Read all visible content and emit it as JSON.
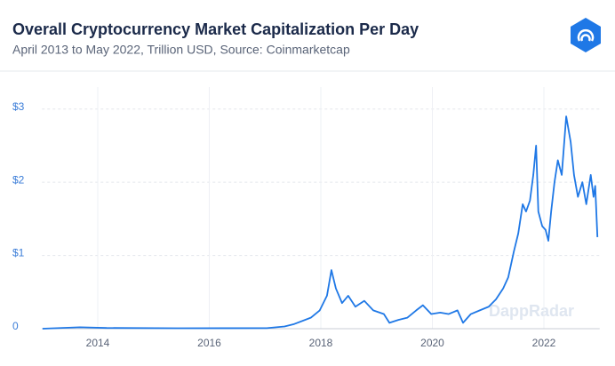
{
  "chart_data": {
    "type": "line",
    "title": "Overall Cryptocurrency Market Capitalization Per Day",
    "subtitle": "April 2013 to May 2022, Trillion USD, Source: Coinmarketcap",
    "watermark": "DappRadar",
    "x": [
      2013.01,
      2013.68,
      2014.16,
      2015.43,
      2017.03,
      2017.35,
      2017.51,
      2017.82,
      2017.98,
      2018.11,
      2018.19,
      2018.27,
      2018.38,
      2018.49,
      2018.62,
      2018.78,
      2018.94,
      2019.13,
      2019.23,
      2019.39,
      2019.55,
      2019.71,
      2019.83,
      2019.98,
      2020.14,
      2020.29,
      2020.45,
      2020.55,
      2020.69,
      2020.85,
      2021.01,
      2021.14,
      2021.27,
      2021.36,
      2021.46,
      2021.54,
      2021.62,
      2021.68,
      2021.75,
      2021.81,
      2021.86,
      2021.9,
      2021.97,
      2022.03,
      2022.08,
      2022.13,
      2022.19,
      2022.25,
      2022.32,
      2022.4,
      2022.48,
      2022.54,
      2022.61,
      2022.69,
      2022.76,
      2022.84,
      2022.89,
      2022.92,
      2022.96
    ],
    "series": [
      {
        "color": "#1f78e6",
        "values": [
          0,
          0.02,
          0.01,
          0.006,
          0.008,
          0.03,
          0.06,
          0.15,
          0.25,
          0.45,
          0.8,
          0.55,
          0.35,
          0.45,
          0.3,
          0.38,
          0.25,
          0.2,
          0.08,
          0.12,
          0.15,
          0.25,
          0.32,
          0.2,
          0.22,
          0.2,
          0.25,
          0.08,
          0.2,
          0.25,
          0.3,
          0.4,
          0.55,
          0.7,
          1.05,
          1.3,
          1.7,
          1.6,
          1.75,
          2.1,
          2.5,
          1.6,
          1.4,
          1.35,
          1.2,
          1.6,
          2.0,
          2.3,
          2.1,
          2.9,
          2.55,
          2.1,
          1.8,
          2.0,
          1.7,
          2.1,
          1.8,
          1.95,
          1.25
        ]
      }
    ],
    "xlim": [
      2013.0,
      2023.0
    ],
    "xticks": [
      2014,
      2016,
      2018,
      2020,
      2022
    ],
    "ylim": [
      0,
      3.3
    ],
    "yticks": [
      0,
      {
        "value": 1,
        "label": "$1"
      },
      {
        "value": 2,
        "label": "$2"
      },
      {
        "value": 3,
        "label": "$3"
      }
    ],
    "grid": true
  }
}
